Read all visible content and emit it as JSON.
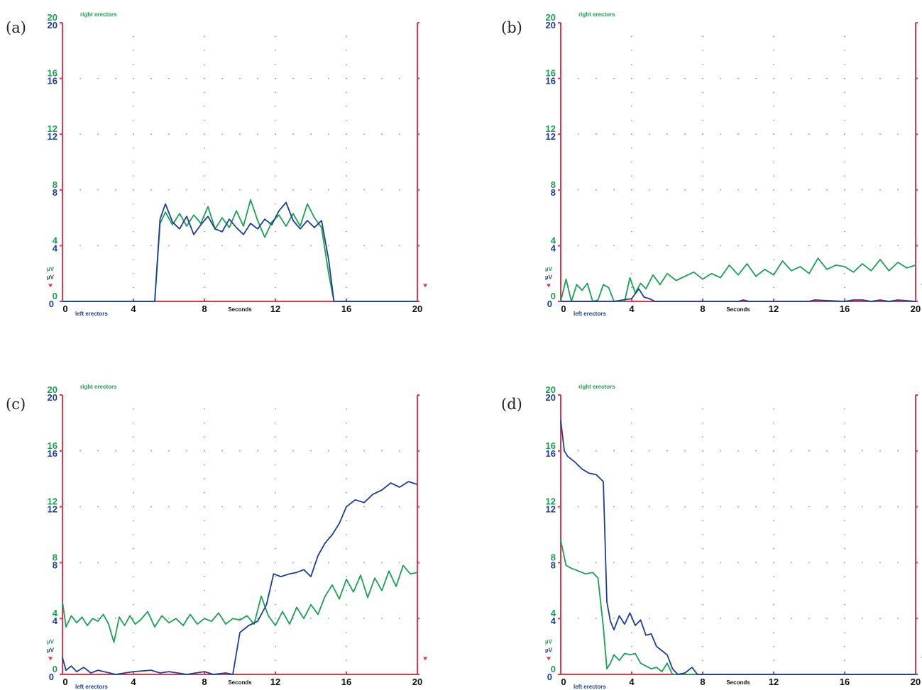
{
  "chart_data": [
    {
      "type": "line",
      "panel_label": "(a)",
      "xlabel": "Seconds",
      "top_label": "right erectors",
      "bottom_label": "left erectors",
      "unit_label": "µV",
      "xlim": [
        0,
        20
      ],
      "ylim": [
        0,
        20
      ],
      "x_ticks": [
        "0",
        "4",
        "8",
        "12",
        "16",
        "20"
      ],
      "y_ticks": [
        "0",
        "4",
        "8",
        "12",
        "16",
        "20"
      ],
      "series": [
        {
          "color": "#1aa152",
          "x": [
            0,
            5.2,
            5.5,
            5.8,
            6.2,
            6.6,
            7.0,
            7.4,
            7.8,
            8.2,
            8.6,
            9.0,
            9.4,
            9.8,
            10.2,
            10.6,
            11.0,
            11.4,
            11.8,
            12.2,
            12.6,
            13.0,
            13.4,
            13.8,
            14.2,
            14.6,
            15.0,
            15.3,
            20
          ],
          "y": [
            0,
            0,
            5.6,
            6.4,
            5.5,
            6.3,
            5.4,
            6.2,
            5.6,
            6.8,
            5.2,
            6.0,
            5.3,
            6.5,
            5.4,
            7.3,
            5.8,
            4.6,
            5.7,
            6.2,
            5.4,
            6.3,
            5.4,
            7.0,
            6.0,
            5.3,
            2.0,
            0,
            0
          ]
        },
        {
          "color": "#1b3f98",
          "x": [
            0,
            5.2,
            5.5,
            5.8,
            6.2,
            6.6,
            7.0,
            7.4,
            7.8,
            8.2,
            8.6,
            9.0,
            9.4,
            9.8,
            10.2,
            10.6,
            11.0,
            11.4,
            11.8,
            12.2,
            12.6,
            13.0,
            13.4,
            13.8,
            14.2,
            14.6,
            15.0,
            15.3,
            20
          ],
          "y": [
            0,
            0,
            5.9,
            7.0,
            5.7,
            5.2,
            6.1,
            4.8,
            5.5,
            6.1,
            5.2,
            5.0,
            5.9,
            5.3,
            4.8,
            5.6,
            5.2,
            5.9,
            5.5,
            6.5,
            7.1,
            5.8,
            5.2,
            5.8,
            5.3,
            5.8,
            3.0,
            0,
            0
          ]
        }
      ]
    },
    {
      "type": "line",
      "panel_label": "(b)",
      "xlabel": "Seconds",
      "top_label": "right erectors",
      "bottom_label": "left erectors",
      "unit_label": "µV",
      "xlim": [
        0,
        20
      ],
      "ylim": [
        0,
        20
      ],
      "x_ticks": [
        "0",
        "4",
        "8",
        "12",
        "16",
        "20"
      ],
      "y_ticks": [
        "0",
        "4",
        "8",
        "12",
        "16",
        "20"
      ],
      "series": [
        {
          "color": "#1aa152",
          "x": [
            0,
            0.3,
            0.6,
            0.9,
            1.2,
            1.5,
            1.8,
            2.1,
            2.4,
            2.7,
            3.0,
            3.3,
            3.6,
            3.9,
            4.2,
            4.5,
            4.8,
            5.2,
            5.6,
            6.0,
            6.5,
            7.0,
            7.5,
            8.0,
            8.5,
            9.0,
            9.5,
            10.0,
            10.5,
            11.0,
            11.5,
            12.0,
            12.5,
            13.0,
            13.5,
            14.0,
            14.5,
            15.0,
            15.5,
            16.0,
            16.5,
            17.0,
            17.5,
            18.0,
            18.5,
            19.0,
            19.5,
            20.0
          ],
          "y": [
            0,
            1.6,
            0,
            1.2,
            0.8,
            1.3,
            0,
            0.1,
            1.2,
            1.0,
            0,
            0,
            0,
            1.7,
            0.6,
            1.3,
            0.9,
            1.9,
            1.2,
            2.0,
            1.5,
            1.8,
            2.1,
            1.6,
            2.0,
            1.7,
            2.6,
            1.9,
            2.7,
            1.8,
            2.3,
            1.9,
            2.9,
            2.2,
            2.5,
            2.0,
            3.1,
            2.3,
            2.6,
            2.5,
            2.1,
            2.7,
            2.2,
            3.0,
            2.2,
            2.8,
            2.4,
            2.6
          ]
        },
        {
          "color": "#1b3f98",
          "x": [
            0,
            3.0,
            3.5,
            4.0,
            4.4,
            4.7,
            5.0,
            5.3,
            5.6,
            6.0,
            10.0,
            10.3,
            10.6,
            14.0,
            14.3,
            16.0,
            16.5,
            17.0,
            17.5,
            18.0,
            18.5,
            19.0,
            20.0
          ],
          "y": [
            0,
            0,
            0.1,
            0.2,
            0.9,
            0.3,
            0.2,
            0,
            0,
            0,
            0,
            0.1,
            0,
            0,
            0.1,
            0,
            0.1,
            0.1,
            0,
            0.1,
            0,
            0.1,
            0
          ]
        }
      ]
    },
    {
      "type": "line",
      "panel_label": "(c)",
      "xlabel": "Seconds",
      "top_label": "right erectors",
      "bottom_label": "left erectors",
      "unit_label": "µV",
      "xlim": [
        0,
        20
      ],
      "ylim": [
        0,
        20
      ],
      "x_ticks": [
        "0",
        "4",
        "8",
        "12",
        "16",
        "20"
      ],
      "y_ticks": [
        "0",
        "4",
        "8",
        "12",
        "16",
        "20"
      ],
      "series": [
        {
          "color": "#1aa152",
          "x": [
            0,
            0.2,
            0.5,
            0.8,
            1.1,
            1.4,
            1.7,
            2.0,
            2.3,
            2.6,
            2.9,
            3.2,
            3.5,
            3.8,
            4.1,
            4.4,
            4.8,
            5.2,
            5.6,
            6.0,
            6.4,
            6.8,
            7.2,
            7.6,
            8.0,
            8.4,
            8.8,
            9.2,
            9.6,
            10.0,
            10.4,
            10.8,
            11.2,
            11.6,
            12.0,
            12.4,
            12.8,
            13.2,
            13.6,
            14.0,
            14.4,
            14.8,
            15.2,
            15.6,
            16.0,
            16.4,
            16.8,
            17.2,
            17.6,
            18.0,
            18.4,
            18.8,
            19.2,
            19.6,
            20.0
          ],
          "y": [
            5.2,
            3.4,
            4.2,
            3.7,
            4.1,
            3.5,
            4.0,
            3.8,
            4.3,
            3.6,
            2.3,
            4.1,
            3.5,
            4.2,
            3.6,
            3.9,
            4.5,
            3.4,
            4.2,
            3.7,
            4.0,
            3.5,
            4.3,
            3.6,
            4.0,
            3.8,
            4.4,
            3.6,
            4.0,
            3.9,
            4.2,
            3.6,
            5.6,
            4.2,
            3.5,
            4.5,
            3.6,
            4.8,
            4.0,
            5.0,
            4.3,
            5.6,
            6.4,
            5.4,
            6.8,
            5.9,
            7.1,
            5.5,
            6.9,
            6.0,
            7.4,
            6.3,
            7.8,
            7.2,
            7.3
          ]
        },
        {
          "color": "#1b3f98",
          "x": [
            0,
            0.2,
            0.5,
            0.8,
            1.2,
            1.6,
            2.0,
            3.0,
            4.0,
            5.0,
            5.5,
            6.0,
            7.0,
            8.0,
            8.5,
            9.2,
            9.6,
            10.0,
            10.5,
            11.0,
            11.5,
            11.9,
            12.3,
            12.8,
            13.2,
            13.6,
            14.0,
            14.4,
            14.8,
            15.2,
            15.6,
            16.0,
            16.5,
            17.0,
            17.5,
            18.0,
            18.5,
            19.0,
            19.5,
            20.0
          ],
          "y": [
            1.2,
            0.3,
            0.6,
            0.2,
            0.5,
            0.1,
            0.3,
            0,
            0.2,
            0.3,
            0.1,
            0.2,
            0,
            0.2,
            0,
            0.1,
            0,
            3.0,
            3.5,
            3.8,
            5.0,
            7.2,
            7.0,
            7.2,
            7.3,
            7.5,
            7.0,
            8.5,
            9.4,
            10.0,
            10.8,
            12.0,
            12.5,
            12.3,
            12.9,
            13.2,
            13.7,
            13.4,
            13.8,
            13.6
          ]
        }
      ]
    },
    {
      "type": "line",
      "panel_label": "(d)",
      "xlabel": "Seconds",
      "top_label": "right erectors",
      "bottom_label": "left erectors",
      "unit_label": "µV",
      "xlim": [
        0,
        20
      ],
      "ylim": [
        0,
        20
      ],
      "x_ticks": [
        "0",
        "4",
        "8",
        "12",
        "16",
        "20"
      ],
      "y_ticks": [
        "0",
        "4",
        "8",
        "12",
        "16",
        "20"
      ],
      "series": [
        {
          "color": "#1aa152",
          "x": [
            0,
            0.3,
            0.6,
            1.0,
            1.4,
            1.8,
            2.1,
            2.4,
            2.6,
            2.8,
            3.0,
            3.3,
            3.6,
            3.9,
            4.2,
            4.5,
            4.8,
            5.1,
            5.4,
            5.7,
            6.0,
            6.3,
            6.6,
            20
          ],
          "y": [
            9.6,
            7.8,
            7.6,
            7.4,
            7.2,
            7.3,
            6.9,
            3.4,
            0.4,
            0.8,
            1.4,
            1.0,
            1.5,
            1.4,
            1.5,
            0.8,
            0.6,
            0.4,
            0.5,
            0.2,
            0.8,
            0,
            0,
            0
          ]
        },
        {
          "color": "#1b3f98",
          "x": [
            0,
            0.2,
            0.4,
            0.8,
            1.2,
            1.6,
            2.0,
            2.4,
            2.6,
            2.8,
            3.0,
            3.3,
            3.6,
            3.9,
            4.2,
            4.5,
            4.8,
            5.1,
            5.4,
            5.7,
            6.0,
            6.3,
            6.6,
            7.0,
            7.4,
            7.7,
            8.0,
            20
          ],
          "y": [
            18.2,
            16.0,
            15.6,
            15.2,
            14.7,
            14.4,
            14.3,
            13.8,
            5.2,
            3.8,
            3.2,
            4.2,
            3.6,
            4.4,
            3.5,
            3.9,
            2.8,
            2.9,
            2.0,
            1.7,
            1.4,
            0.4,
            0,
            0.1,
            0.5,
            0,
            0,
            0
          ]
        }
      ]
    }
  ]
}
